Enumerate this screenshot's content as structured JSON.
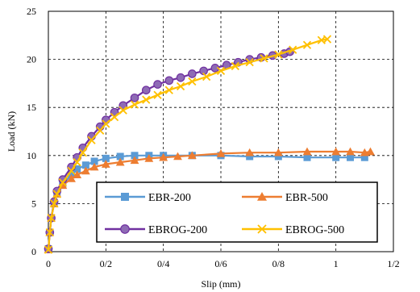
{
  "chart_data": {
    "type": "line",
    "xlabel": "Slip (mm)",
    "ylabel": "Load (kN)",
    "xlim": [
      0,
      1.2
    ],
    "ylim": [
      0,
      25
    ],
    "x_ticks": [
      {
        "value": 0,
        "label": "0"
      },
      {
        "value": 0.2,
        "label": "0/2"
      },
      {
        "value": 0.4,
        "label": "0/4"
      },
      {
        "value": 0.6,
        "label": "0/6"
      },
      {
        "value": 0.8,
        "label": "0/8"
      },
      {
        "value": 1.0,
        "label": "1"
      },
      {
        "value": 1.2,
        "label": "1/2"
      }
    ],
    "y_ticks": [
      {
        "value": 0,
        "label": "0"
      },
      {
        "value": 5,
        "label": "5"
      },
      {
        "value": 10,
        "label": "10"
      },
      {
        "value": 15,
        "label": "15"
      },
      {
        "value": 20,
        "label": "20"
      },
      {
        "value": 25,
        "label": "25"
      }
    ],
    "grid": "dashed",
    "legend_position": "bottom-center",
    "series": [
      {
        "name": "EBR-200",
        "color": "#5B9BD5",
        "marker": "square",
        "points": [
          [
            0,
            0.3
          ],
          [
            0.005,
            2
          ],
          [
            0.01,
            3.5
          ],
          [
            0.02,
            5
          ],
          [
            0.03,
            6
          ],
          [
            0.05,
            7
          ],
          [
            0.08,
            8
          ],
          [
            0.1,
            8.6
          ],
          [
            0.13,
            9
          ],
          [
            0.16,
            9.4
          ],
          [
            0.2,
            9.7
          ],
          [
            0.25,
            9.9
          ],
          [
            0.3,
            10.0
          ],
          [
            0.35,
            10.0
          ],
          [
            0.4,
            10.0
          ],
          [
            0.5,
            10.0
          ],
          [
            0.6,
            10.0
          ],
          [
            0.7,
            9.9
          ],
          [
            0.8,
            9.9
          ],
          [
            0.9,
            9.8
          ],
          [
            1.0,
            9.8
          ],
          [
            1.05,
            9.8
          ],
          [
            1.1,
            9.8
          ]
        ]
      },
      {
        "name": "EBR-500",
        "color": "#ED7D31",
        "marker": "triangle",
        "points": [
          [
            0,
            0.2
          ],
          [
            0.005,
            2
          ],
          [
            0.01,
            3.5
          ],
          [
            0.02,
            5
          ],
          [
            0.03,
            6
          ],
          [
            0.05,
            6.9
          ],
          [
            0.08,
            7.6
          ],
          [
            0.1,
            8
          ],
          [
            0.13,
            8.4
          ],
          [
            0.16,
            8.8
          ],
          [
            0.2,
            9.1
          ],
          [
            0.25,
            9.3
          ],
          [
            0.3,
            9.5
          ],
          [
            0.35,
            9.7
          ],
          [
            0.4,
            9.8
          ],
          [
            0.45,
            9.9
          ],
          [
            0.5,
            10.0
          ],
          [
            0.6,
            10.2
          ],
          [
            0.7,
            10.3
          ],
          [
            0.8,
            10.3
          ],
          [
            0.9,
            10.4
          ],
          [
            1.0,
            10.4
          ],
          [
            1.05,
            10.4
          ],
          [
            1.1,
            10.3
          ],
          [
            1.12,
            10.4
          ]
        ]
      },
      {
        "name": "EBROG-200",
        "color": "#7030A0",
        "marker": "circle",
        "points": [
          [
            0,
            0.3
          ],
          [
            0.005,
            2
          ],
          [
            0.01,
            3.5
          ],
          [
            0.02,
            5.2
          ],
          [
            0.03,
            6.3
          ],
          [
            0.05,
            7.5
          ],
          [
            0.08,
            8.8
          ],
          [
            0.1,
            9.8
          ],
          [
            0.12,
            10.8
          ],
          [
            0.15,
            12
          ],
          [
            0.18,
            13
          ],
          [
            0.2,
            13.7
          ],
          [
            0.23,
            14.5
          ],
          [
            0.26,
            15.2
          ],
          [
            0.3,
            16
          ],
          [
            0.34,
            16.8
          ],
          [
            0.38,
            17.4
          ],
          [
            0.42,
            17.8
          ],
          [
            0.46,
            18.1
          ],
          [
            0.5,
            18.5
          ],
          [
            0.54,
            18.8
          ],
          [
            0.58,
            19.1
          ],
          [
            0.62,
            19.4
          ],
          [
            0.66,
            19.7
          ],
          [
            0.7,
            20
          ],
          [
            0.74,
            20.2
          ],
          [
            0.78,
            20.4
          ],
          [
            0.82,
            20.6
          ],
          [
            0.84,
            20.8
          ]
        ]
      },
      {
        "name": "EBROG-500",
        "color": "#FFC000",
        "marker": "x",
        "points": [
          [
            0,
            0.2
          ],
          [
            0.005,
            2
          ],
          [
            0.01,
            3.5
          ],
          [
            0.02,
            5
          ],
          [
            0.03,
            6
          ],
          [
            0.05,
            7.2
          ],
          [
            0.08,
            8.4
          ],
          [
            0.1,
            9.3
          ],
          [
            0.12,
            10.3
          ],
          [
            0.15,
            11.6
          ],
          [
            0.18,
            12.6
          ],
          [
            0.2,
            13.3
          ],
          [
            0.23,
            14
          ],
          [
            0.26,
            14.7
          ],
          [
            0.3,
            15.3
          ],
          [
            0.34,
            15.8
          ],
          [
            0.38,
            16.3
          ],
          [
            0.42,
            16.8
          ],
          [
            0.46,
            17.2
          ],
          [
            0.5,
            17.7
          ],
          [
            0.55,
            18.2
          ],
          [
            0.6,
            18.8
          ],
          [
            0.65,
            19.3
          ],
          [
            0.7,
            19.7
          ],
          [
            0.75,
            20.1
          ],
          [
            0.8,
            20.5
          ],
          [
            0.85,
            21
          ],
          [
            0.9,
            21.5
          ],
          [
            0.95,
            22
          ],
          [
            0.97,
            22.1
          ]
        ]
      }
    ]
  }
}
